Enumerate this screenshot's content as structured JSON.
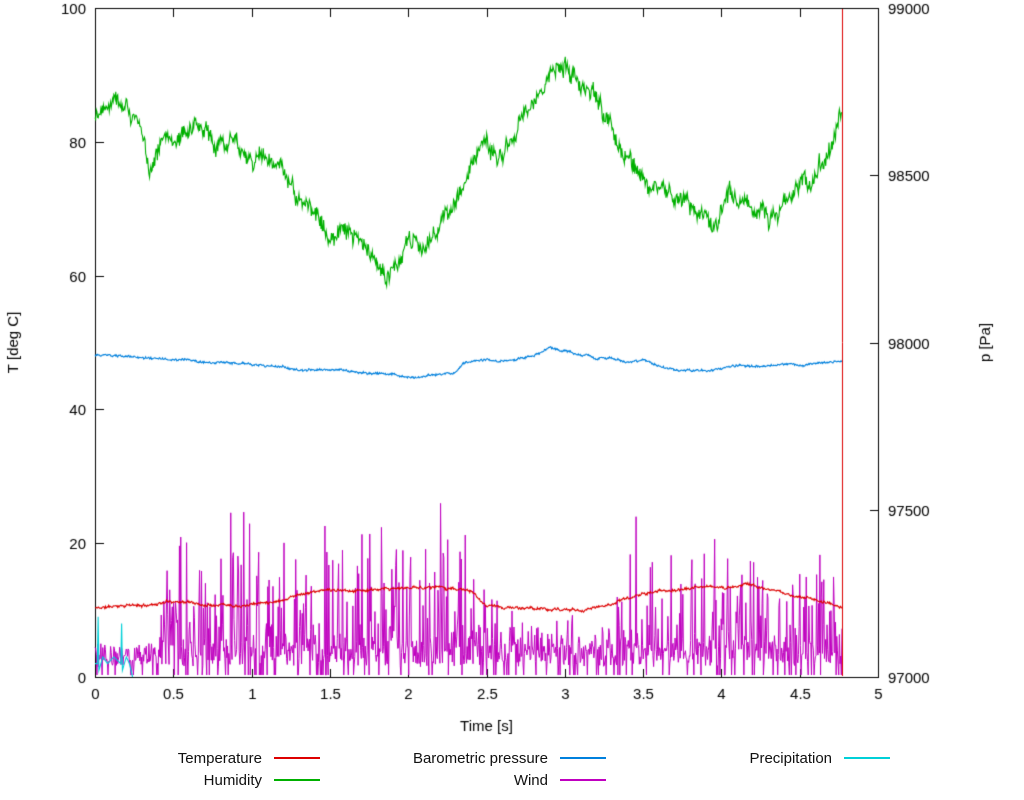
{
  "chart_data": {
    "type": "line",
    "title": "",
    "xlabel": "Time [s]",
    "ylabel_left": "T [deg C]",
    "ylabel_right": "p [Pa]",
    "xlim": [
      0,
      5
    ],
    "ylim_left": [
      0,
      100
    ],
    "ylim_right": [
      97000,
      99000
    ],
    "grid": false,
    "legend_position": "bottom",
    "xticks": [
      0,
      0.5,
      1,
      1.5,
      2,
      2.5,
      3,
      3.5,
      4,
      4.5,
      5
    ],
    "xtick_labels": [
      "0",
      "0.5",
      "1",
      "1.5",
      "2",
      "2.5",
      "3",
      "3.5",
      "4",
      "4.5",
      "5"
    ],
    "yticks_left": [
      0,
      20,
      40,
      60,
      80,
      100
    ],
    "ytick_labels_left": [
      "0",
      "20",
      "40",
      "60",
      "80",
      "100"
    ],
    "yticks_right": [
      97000,
      97500,
      98000,
      98500,
      99000
    ],
    "ytick_labels_right": [
      "97000",
      "97500",
      "98000",
      "98500",
      "99000"
    ],
    "x_end": 4.77,
    "end_line_x": 4.77,
    "series": [
      {
        "name": "Temperature",
        "color": "#dd0000",
        "axis": "left",
        "kind": "anchored",
        "noise_amplitude": 0.3,
        "seed": 11,
        "anchors": [
          [
            0,
            10.3
          ],
          [
            0.1,
            10.5
          ],
          [
            0.2,
            10.8
          ],
          [
            0.3,
            10.6
          ],
          [
            0.4,
            11.0
          ],
          [
            0.5,
            11.4
          ],
          [
            0.6,
            11.2
          ],
          [
            0.7,
            10.8
          ],
          [
            0.8,
            11.0
          ],
          [
            0.9,
            10.8
          ],
          [
            1.0,
            11.0
          ],
          [
            1.1,
            11.2
          ],
          [
            1.2,
            11.6
          ],
          [
            1.3,
            12.4
          ],
          [
            1.4,
            12.8
          ],
          [
            1.5,
            13.0
          ],
          [
            1.6,
            12.8
          ],
          [
            1.7,
            13.0
          ],
          [
            1.8,
            12.9
          ],
          [
            1.9,
            13.1
          ],
          [
            2.0,
            13.3
          ],
          [
            2.1,
            13.4
          ],
          [
            2.2,
            13.5
          ],
          [
            2.3,
            13.2
          ],
          [
            2.4,
            12.8
          ],
          [
            2.45,
            11.5
          ],
          [
            2.5,
            10.6
          ],
          [
            2.6,
            10.4
          ],
          [
            2.7,
            10.3
          ],
          [
            2.8,
            10.2
          ],
          [
            2.9,
            10.1
          ],
          [
            3.0,
            10.0
          ],
          [
            3.1,
            10.0
          ],
          [
            3.2,
            10.4
          ],
          [
            3.3,
            11.0
          ],
          [
            3.4,
            11.8
          ],
          [
            3.5,
            12.4
          ],
          [
            3.6,
            12.8
          ],
          [
            3.7,
            13.0
          ],
          [
            3.8,
            13.2
          ],
          [
            3.9,
            13.5
          ],
          [
            4.0,
            13.3
          ],
          [
            4.1,
            13.6
          ],
          [
            4.15,
            14.0
          ],
          [
            4.2,
            13.8
          ],
          [
            4.3,
            13.0
          ],
          [
            4.4,
            12.4
          ],
          [
            4.5,
            12.0
          ],
          [
            4.6,
            11.6
          ],
          [
            4.7,
            11.0
          ],
          [
            4.77,
            10.4
          ]
        ]
      },
      {
        "name": "Humidity",
        "color": "#00b000",
        "axis": "left",
        "kind": "anchored",
        "noise_amplitude": 2.0,
        "seed": 22,
        "anchors": [
          [
            0,
            84
          ],
          [
            0.05,
            86
          ],
          [
            0.12,
            88
          ],
          [
            0.2,
            86
          ],
          [
            0.28,
            82
          ],
          [
            0.35,
            76
          ],
          [
            0.4,
            80
          ],
          [
            0.5,
            81
          ],
          [
            0.6,
            82
          ],
          [
            0.7,
            81
          ],
          [
            0.8,
            80
          ],
          [
            0.9,
            81
          ],
          [
            1.0,
            78
          ],
          [
            1.1,
            77
          ],
          [
            1.2,
            75
          ],
          [
            1.3,
            71
          ],
          [
            1.4,
            69
          ],
          [
            1.5,
            67
          ],
          [
            1.6,
            66
          ],
          [
            1.7,
            64
          ],
          [
            1.8,
            62
          ],
          [
            1.9,
            60
          ],
          [
            1.95,
            61
          ],
          [
            2.0,
            64
          ],
          [
            2.1,
            65
          ],
          [
            2.2,
            68
          ],
          [
            2.3,
            71
          ],
          [
            2.4,
            76
          ],
          [
            2.5,
            80
          ],
          [
            2.55,
            79
          ],
          [
            2.6,
            78
          ],
          [
            2.7,
            82
          ],
          [
            2.8,
            86
          ],
          [
            2.9,
            89
          ],
          [
            3.0,
            92
          ],
          [
            3.05,
            90
          ],
          [
            3.1,
            88
          ],
          [
            3.2,
            86
          ],
          [
            3.3,
            82
          ],
          [
            3.4,
            78
          ],
          [
            3.5,
            75
          ],
          [
            3.6,
            72
          ],
          [
            3.7,
            72
          ],
          [
            3.8,
            70
          ],
          [
            3.9,
            69
          ],
          [
            3.95,
            68
          ],
          [
            4.0,
            70
          ],
          [
            4.05,
            72
          ],
          [
            4.1,
            72
          ],
          [
            4.2,
            70
          ],
          [
            4.3,
            69
          ],
          [
            4.4,
            71
          ],
          [
            4.5,
            73
          ],
          [
            4.6,
            76
          ],
          [
            4.65,
            78
          ],
          [
            4.7,
            79
          ],
          [
            4.77,
            84
          ]
        ]
      },
      {
        "name": "Barometric pressure",
        "color": "#0080dd",
        "axis": "right",
        "kind": "anchored",
        "noise_amplitude": 5,
        "seed": 33,
        "anchors": [
          [
            0,
            97962
          ],
          [
            0.2,
            97958
          ],
          [
            0.4,
            97952
          ],
          [
            0.6,
            97945
          ],
          [
            0.8,
            97938
          ],
          [
            1.0,
            97932
          ],
          [
            1.2,
            97928
          ],
          [
            1.35,
            97915
          ],
          [
            1.5,
            97918
          ],
          [
            1.7,
            97910
          ],
          [
            1.9,
            97905
          ],
          [
            2.0,
            97898
          ],
          [
            2.05,
            97893
          ],
          [
            2.15,
            97900
          ],
          [
            2.3,
            97910
          ],
          [
            2.35,
            97940
          ],
          [
            2.5,
            97948
          ],
          [
            2.6,
            97945
          ],
          [
            2.7,
            97952
          ],
          [
            2.8,
            97960
          ],
          [
            2.9,
            97985
          ],
          [
            3.0,
            97975
          ],
          [
            3.1,
            97962
          ],
          [
            3.2,
            97955
          ],
          [
            3.3,
            97952
          ],
          [
            3.4,
            97940
          ],
          [
            3.5,
            97945
          ],
          [
            3.6,
            97930
          ],
          [
            3.7,
            97922
          ],
          [
            3.8,
            97918
          ],
          [
            3.9,
            97912
          ],
          [
            4.0,
            97920
          ],
          [
            4.1,
            97930
          ],
          [
            4.2,
            97928
          ],
          [
            4.3,
            97932
          ],
          [
            4.4,
            97935
          ],
          [
            4.5,
            97930
          ],
          [
            4.6,
            97938
          ],
          [
            4.7,
            97942
          ],
          [
            4.77,
            97948
          ]
        ]
      },
      {
        "name": "Wind",
        "color": "#c000c0",
        "axis": "left",
        "kind": "spiky",
        "seed": 44,
        "envelope": [
          [
            0,
            5
          ],
          [
            0.38,
            5
          ],
          [
            0.45,
            18
          ],
          [
            0.55,
            25
          ],
          [
            0.7,
            22
          ],
          [
            0.85,
            30
          ],
          [
            0.9,
            34
          ],
          [
            1.0,
            26
          ],
          [
            1.1,
            20
          ],
          [
            1.2,
            21
          ],
          [
            1.35,
            20
          ],
          [
            1.5,
            24
          ],
          [
            1.6,
            25
          ],
          [
            1.7,
            26
          ],
          [
            1.8,
            24
          ],
          [
            1.9,
            22
          ],
          [
            2.0,
            31
          ],
          [
            2.1,
            26
          ],
          [
            2.2,
            29
          ],
          [
            2.3,
            24
          ],
          [
            2.4,
            28
          ],
          [
            2.45,
            20
          ],
          [
            2.5,
            14
          ],
          [
            2.6,
            12
          ],
          [
            2.7,
            11
          ],
          [
            2.8,
            10
          ],
          [
            2.9,
            11
          ],
          [
            3.0,
            12
          ],
          [
            3.1,
            12
          ],
          [
            3.2,
            10
          ],
          [
            3.3,
            12
          ],
          [
            3.4,
            16
          ],
          [
            3.45,
            25
          ],
          [
            3.5,
            22
          ],
          [
            3.6,
            18
          ],
          [
            3.7,
            20
          ],
          [
            3.8,
            22
          ],
          [
            3.9,
            20
          ],
          [
            4.0,
            24
          ],
          [
            4.1,
            18
          ],
          [
            4.2,
            20
          ],
          [
            4.3,
            16
          ],
          [
            4.4,
            20
          ],
          [
            4.5,
            18
          ],
          [
            4.6,
            22
          ],
          [
            4.7,
            18
          ],
          [
            4.77,
            15
          ]
        ]
      },
      {
        "name": "Precipitation",
        "color": "#00d0d8",
        "axis": "left",
        "kind": "points",
        "points": [
          [
            0,
            2
          ],
          [
            0.015,
            2
          ],
          [
            0.02,
            9
          ],
          [
            0.025,
            1
          ],
          [
            0.05,
            3
          ],
          [
            0.08,
            2
          ],
          [
            0.12,
            3
          ],
          [
            0.165,
            2
          ],
          [
            0.17,
            8
          ],
          [
            0.175,
            1
          ],
          [
            0.2,
            3
          ],
          [
            0.22,
            2
          ],
          [
            0.24,
            0
          ]
        ]
      }
    ],
    "legend_order": [
      0,
      2,
      4,
      1,
      3
    ]
  }
}
